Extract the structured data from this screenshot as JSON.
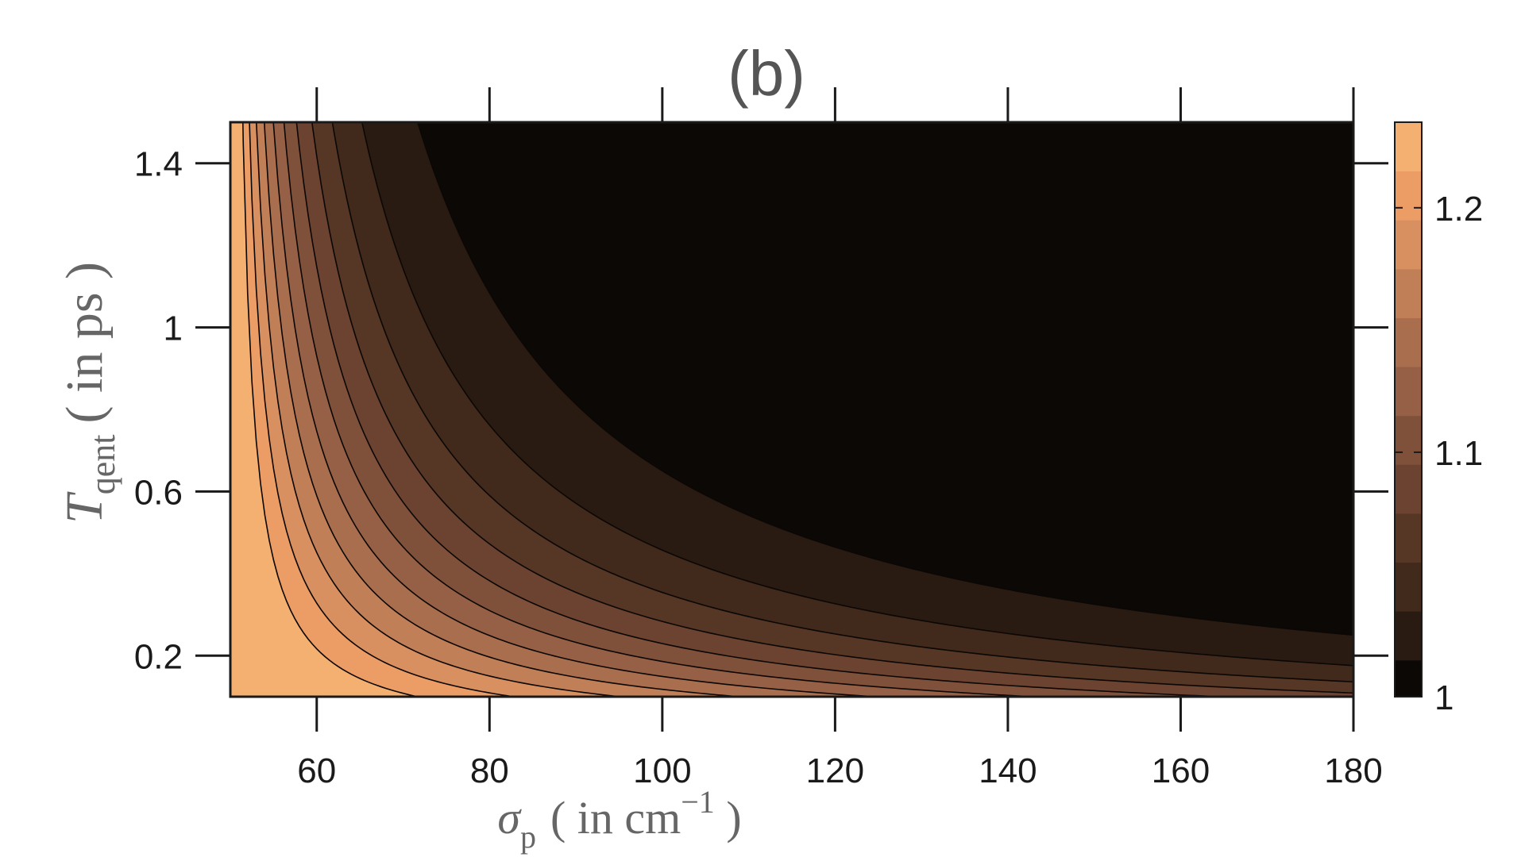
{
  "chart_data": {
    "type": "contour",
    "title": "(b)",
    "xlabel": {
      "symbol": "σ",
      "subscript": "p",
      "text": "( in cm",
      "superscript": "−1",
      "close": " )"
    },
    "ylabel": {
      "symbol": "T",
      "subscript": "qent",
      "text": "( in ps )"
    },
    "xlim": [
      50,
      180
    ],
    "ylim": [
      0.1,
      1.5
    ],
    "xticks": [
      60,
      80,
      100,
      120,
      140,
      160,
      180
    ],
    "xtick_labels": [
      "60",
      "80",
      "100",
      "120",
      "140",
      "160",
      "180"
    ],
    "yticks": [
      0.2,
      0.6,
      1.0,
      1.4
    ],
    "ytick_labels": [
      "0.2",
      "0.6",
      "1",
      "1.4"
    ],
    "colorbar": {
      "range": [
        1,
        1.235
      ],
      "ticks": [
        1,
        1.1,
        1.2
      ],
      "tick_labels": [
        "1",
        "1.1",
        "1.2"
      ],
      "colors": [
        "#0b0806",
        "#2a1b12",
        "#41291b",
        "#563624",
        "#6b4330",
        "#80513a",
        "#956045",
        "#a96e4e",
        "#c07f57",
        "#d99060",
        "#ec9c65",
        "#f3b070",
        "#f7c98e"
      ]
    },
    "contour_levels": [
      1.015,
      1.035,
      1.055,
      1.075,
      1.095,
      1.115,
      1.135,
      1.155,
      1.175,
      1.195,
      1.215
    ],
    "model": "z = 1 + 0.26 * exp(-(x - 50) * y / 11.4)",
    "grid": false
  }
}
